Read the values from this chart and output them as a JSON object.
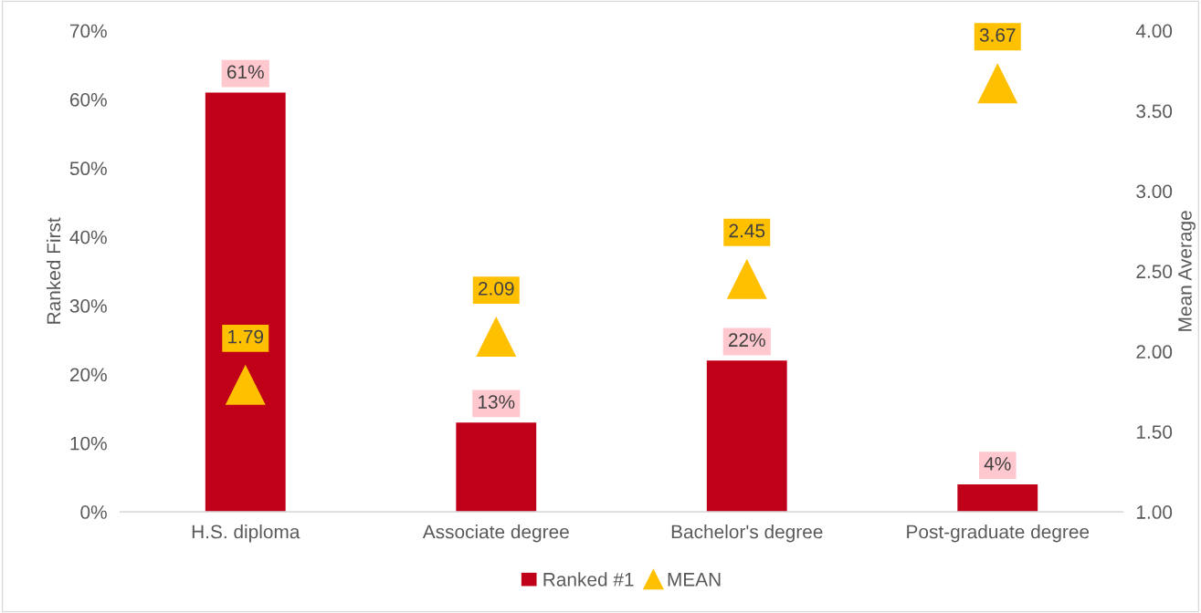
{
  "chart_data": {
    "type": "bar",
    "ylabel": "Ranked First",
    "y2label": "Mean Average",
    "categories": [
      "H.S. diploma",
      "Associate degree",
      "Bachelor's degree",
      "Post-graduate degree"
    ],
    "series": [
      {
        "name": "Ranked #1",
        "color": "#c00018",
        "values": [
          61,
          13,
          22,
          4
        ],
        "value_labels": [
          "61%",
          "13%",
          "22%",
          "4%"
        ]
      },
      {
        "name": "MEAN",
        "type": "scatter",
        "axis": "y2",
        "marker": "triangle",
        "color": "#ffc000",
        "values": [
          1.79,
          2.09,
          2.45,
          3.67
        ],
        "value_labels": [
          "1.79",
          "2.09",
          "2.45",
          "3.67"
        ]
      }
    ],
    "ylim": [
      0,
      70
    ],
    "yticks": [
      {
        "value": 0,
        "label": "0%"
      },
      {
        "value": 10,
        "label": "10%"
      },
      {
        "value": 20,
        "label": "20%"
      },
      {
        "value": 30,
        "label": "30%"
      },
      {
        "value": 40,
        "label": "40%"
      },
      {
        "value": 50,
        "label": "50%"
      },
      {
        "value": 60,
        "label": "60%"
      },
      {
        "value": 70,
        "label": "70%"
      }
    ],
    "y2lim": [
      1.0,
      4.0
    ],
    "y2ticks": [
      {
        "value": 1.0,
        "label": "1.00"
      },
      {
        "value": 1.5,
        "label": "1.50"
      },
      {
        "value": 2.0,
        "label": "2.00"
      },
      {
        "value": 2.5,
        "label": "2.50"
      },
      {
        "value": 3.0,
        "label": "3.00"
      },
      {
        "value": 3.5,
        "label": "3.50"
      },
      {
        "value": 4.0,
        "label": "4.00"
      }
    ],
    "grid": false,
    "legend": "bottom"
  }
}
